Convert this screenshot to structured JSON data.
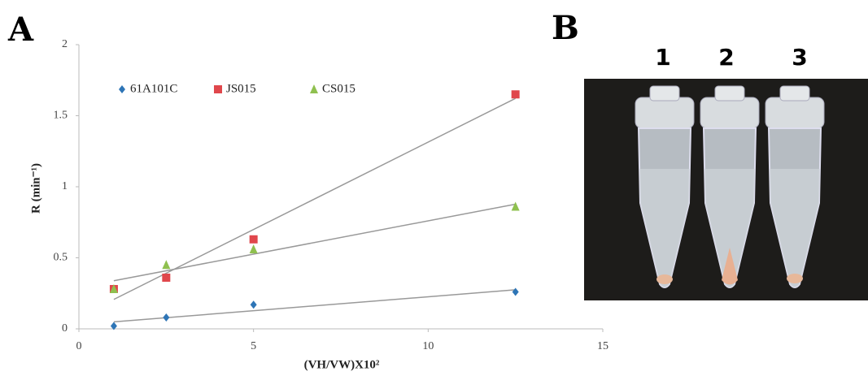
{
  "panel_labels": [
    "A",
    "B"
  ],
  "photo": {
    "labels": [
      "1",
      "2",
      "3"
    ]
  },
  "chart_data": {
    "type": "scatter",
    "x_label": "(VH/VW)X10²",
    "y_label": "R (min⁻¹)",
    "x": [
      1,
      2.5,
      5,
      12.5
    ],
    "series": [
      {
        "name": "61A101C",
        "color": "#2e75b6",
        "marker": "diamond",
        "values": [
          0.02,
          0.08,
          0.17,
          0.26
        ]
      },
      {
        "name": "JS015",
        "color": "#e0474c",
        "marker": "square",
        "values": [
          0.28,
          0.36,
          0.63,
          1.65
        ]
      },
      {
        "name": "CS015",
        "color": "#8fc04f",
        "marker": "triangle",
        "values": [
          0.28,
          0.45,
          0.56,
          0.86
        ]
      }
    ],
    "trendline": true,
    "trendline_color": "#999999",
    "xlim": [
      0,
      15
    ],
    "xticks": [
      0,
      5,
      10,
      15
    ],
    "ylim": [
      0,
      2
    ],
    "yticks": [
      0,
      0.5,
      1,
      1.5,
      2
    ],
    "grid": false,
    "legend": "top-left"
  }
}
